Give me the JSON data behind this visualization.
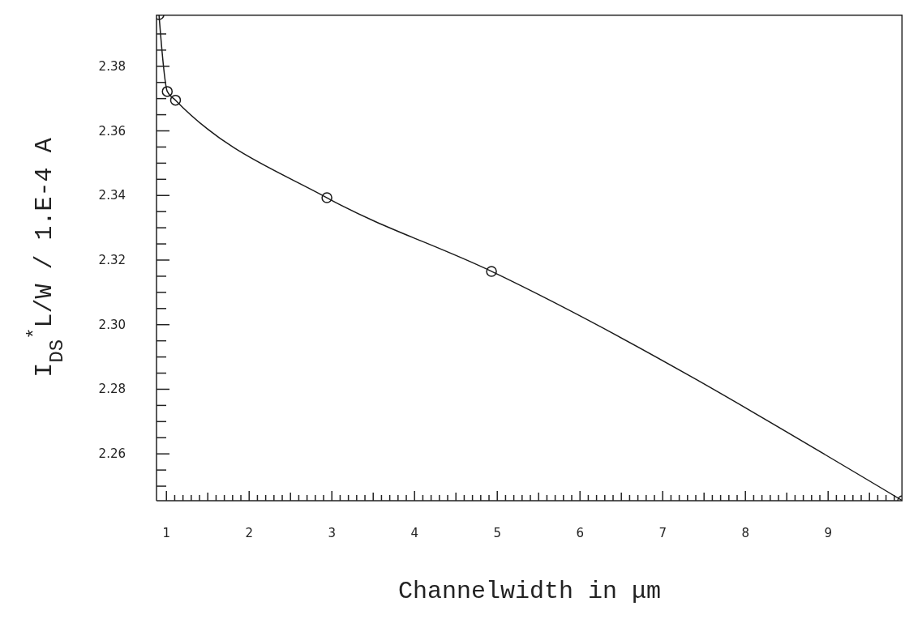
{
  "chart_data": {
    "type": "line",
    "xlabel": "Channelwidth in μm",
    "ylabel": "I$_{DS}$$^{*}$L/W  / 1.E-4 A",
    "x": [
      0.91,
      1.01,
      1.11,
      2.94,
      4.93,
      9.9
    ],
    "series": [
      {
        "color": "#1a1a1a",
        "values": [
          2.396,
          2.3722,
          2.3695,
          2.3393,
          2.3165,
          2.2455
        ]
      }
    ],
    "xlim": [
      0.88,
      9.9
    ],
    "ylim": [
      2.2455,
      2.396
    ],
    "xticks": [
      {
        "value": 1.0,
        "label": "1"
      },
      {
        "value": 1.1,
        "label": null
      },
      {
        "value": 1.2,
        "label": null
      },
      {
        "value": 1.3,
        "label": null
      },
      {
        "value": 1.4,
        "label": null
      },
      {
        "value": 1.5,
        "label": null
      },
      {
        "value": 1.6,
        "label": null
      },
      {
        "value": 1.7,
        "label": null
      },
      {
        "value": 1.8,
        "label": null
      },
      {
        "value": 1.9,
        "label": null
      },
      {
        "value": 2.0,
        "label": "2"
      },
      {
        "value": 2.1,
        "label": null
      },
      {
        "value": 2.2,
        "label": null
      },
      {
        "value": 2.3,
        "label": null
      },
      {
        "value": 2.4,
        "label": null
      },
      {
        "value": 2.5,
        "label": null
      },
      {
        "value": 2.6,
        "label": null
      },
      {
        "value": 2.7,
        "label": null
      },
      {
        "value": 2.8,
        "label": null
      },
      {
        "value": 2.9,
        "label": null
      },
      {
        "value": 3.0,
        "label": "3"
      },
      {
        "value": 3.1,
        "label": null
      },
      {
        "value": 3.2,
        "label": null
      },
      {
        "value": 3.3,
        "label": null
      },
      {
        "value": 3.4,
        "label": null
      },
      {
        "value": 3.5,
        "label": null
      },
      {
        "value": 3.6,
        "label": null
      },
      {
        "value": 3.7,
        "label": null
      },
      {
        "value": 3.8,
        "label": null
      },
      {
        "value": 3.9,
        "label": null
      },
      {
        "value": 4.0,
        "label": "4"
      },
      {
        "value": 4.1,
        "label": null
      },
      {
        "value": 4.2,
        "label": null
      },
      {
        "value": 4.3,
        "label": null
      },
      {
        "value": 4.4,
        "label": null
      },
      {
        "value": 4.5,
        "label": null
      },
      {
        "value": 4.6,
        "label": null
      },
      {
        "value": 4.7,
        "label": null
      },
      {
        "value": 4.8,
        "label": null
      },
      {
        "value": 4.9,
        "label": null
      },
      {
        "value": 5.0,
        "label": "5"
      },
      {
        "value": 5.1,
        "label": null
      },
      {
        "value": 5.2,
        "label": null
      },
      {
        "value": 5.3,
        "label": null
      },
      {
        "value": 5.4,
        "label": null
      },
      {
        "value": 5.5,
        "label": null
      },
      {
        "value": 5.6,
        "label": null
      },
      {
        "value": 5.7,
        "label": null
      },
      {
        "value": 5.8,
        "label": null
      },
      {
        "value": 5.9,
        "label": null
      },
      {
        "value": 6.0,
        "label": "6"
      },
      {
        "value": 6.1,
        "label": null
      },
      {
        "value": 6.2,
        "label": null
      },
      {
        "value": 6.3,
        "label": null
      },
      {
        "value": 6.4,
        "label": null
      },
      {
        "value": 6.5,
        "label": null
      },
      {
        "value": 6.6,
        "label": null
      },
      {
        "value": 6.7,
        "label": null
      },
      {
        "value": 6.8,
        "label": null
      },
      {
        "value": 6.9,
        "label": null
      },
      {
        "value": 7.0,
        "label": "7"
      },
      {
        "value": 7.1,
        "label": null
      },
      {
        "value": 7.2,
        "label": null
      },
      {
        "value": 7.3,
        "label": null
      },
      {
        "value": 7.4,
        "label": null
      },
      {
        "value": 7.5,
        "label": null
      },
      {
        "value": 7.6,
        "label": null
      },
      {
        "value": 7.7,
        "label": null
      },
      {
        "value": 7.8,
        "label": null
      },
      {
        "value": 7.9,
        "label": null
      },
      {
        "value": 8.0,
        "label": "8"
      },
      {
        "value": 8.1,
        "label": null
      },
      {
        "value": 8.2,
        "label": null
      },
      {
        "value": 8.3,
        "label": null
      },
      {
        "value": 8.4,
        "label": null
      },
      {
        "value": 8.5,
        "label": null
      },
      {
        "value": 8.6,
        "label": null
      },
      {
        "value": 8.7,
        "label": null
      },
      {
        "value": 8.8,
        "label": null
      },
      {
        "value": 8.9,
        "label": null
      },
      {
        "value": 9.0,
        "label": "9"
      },
      {
        "value": 9.1,
        "label": null
      },
      {
        "value": 9.2,
        "label": null
      },
      {
        "value": 9.3,
        "label": null
      },
      {
        "value": 9.4,
        "label": null
      },
      {
        "value": 9.5,
        "label": null
      },
      {
        "value": 9.6,
        "label": null
      },
      {
        "value": 9.7,
        "label": null
      },
      {
        "value": 9.8,
        "label": null
      }
    ],
    "yticks": [
      {
        "value": 2.25,
        "label": null
      },
      {
        "value": 2.255,
        "label": null
      },
      {
        "value": 2.26,
        "label": "2.26"
      },
      {
        "value": 2.265,
        "label": null
      },
      {
        "value": 2.27,
        "label": null
      },
      {
        "value": 2.275,
        "label": null
      },
      {
        "value": 2.28,
        "label": "2.28"
      },
      {
        "value": 2.285,
        "label": null
      },
      {
        "value": 2.29,
        "label": null
      },
      {
        "value": 2.295,
        "label": null
      },
      {
        "value": 2.3,
        "label": "2.30"
      },
      {
        "value": 2.305,
        "label": null
      },
      {
        "value": 2.31,
        "label": null
      },
      {
        "value": 2.315,
        "label": null
      },
      {
        "value": 2.32,
        "label": "2.32"
      },
      {
        "value": 2.325,
        "label": null
      },
      {
        "value": 2.33,
        "label": null
      },
      {
        "value": 2.335,
        "label": null
      },
      {
        "value": 2.34,
        "label": "2.34"
      },
      {
        "value": 2.345,
        "label": null
      },
      {
        "value": 2.35,
        "label": null
      },
      {
        "value": 2.355,
        "label": null
      },
      {
        "value": 2.36,
        "label": "2.36"
      },
      {
        "value": 2.365,
        "label": null
      },
      {
        "value": 2.37,
        "label": null
      },
      {
        "value": 2.375,
        "label": null
      },
      {
        "value": 2.38,
        "label": "2.38"
      },
      {
        "value": 2.385,
        "label": null
      },
      {
        "value": 2.39,
        "label": null
      }
    ],
    "marker": "circle",
    "line_style": "solid",
    "grid": false
  }
}
